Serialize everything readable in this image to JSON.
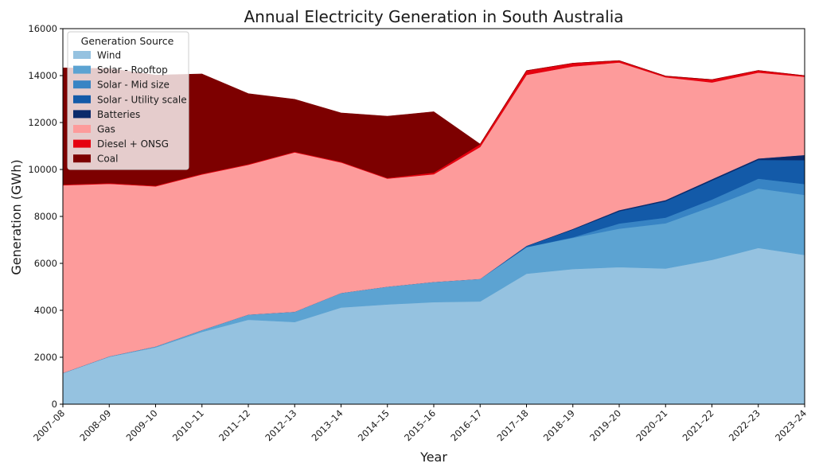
{
  "chart_data": {
    "type": "area",
    "stacked": true,
    "title": "Annual Electricity Generation in South Australia",
    "xlabel": "Year",
    "ylabel": "Generation (GWh)",
    "ylim": [
      0,
      16000
    ],
    "yticks": [
      0,
      2000,
      4000,
      6000,
      8000,
      10000,
      12000,
      14000,
      16000
    ],
    "grid": false,
    "legend": {
      "title": "Generation Source",
      "position": "top-left"
    },
    "categories": [
      "2007–08",
      "2008–09",
      "2009–10",
      "2010–11",
      "2011–12",
      "2012–13",
      "2013–14",
      "2014–15",
      "2015–16",
      "2016–17",
      "2017–18",
      "2018–19",
      "2019–20",
      "2020–21",
      "2021–22",
      "2022–23",
      "2023–24"
    ],
    "series": [
      {
        "name": "Wind",
        "color": "#95c2e0",
        "values": [
          1320,
          2020,
          2420,
          3080,
          3600,
          3500,
          4120,
          4250,
          4350,
          4380,
          5560,
          5760,
          5840,
          5780,
          6150,
          6660,
          6360
        ]
      },
      {
        "name": "Solar - Rooftop",
        "color": "#5ca3d2",
        "values": [
          10,
          20,
          40,
          80,
          220,
          440,
          620,
          760,
          860,
          960,
          1130,
          1330,
          1640,
          1930,
          2270,
          2530,
          2560
        ]
      },
      {
        "name": "Solar - Mid size",
        "color": "#3884c4",
        "values": [
          0,
          0,
          0,
          0,
          0,
          0,
          0,
          0,
          0,
          0,
          0,
          20,
          220,
          240,
          300,
          420,
          460
        ]
      },
      {
        "name": "Solar - Utility scale",
        "color": "#135aa8",
        "values": [
          0,
          0,
          0,
          0,
          0,
          0,
          0,
          0,
          0,
          0,
          50,
          330,
          520,
          700,
          810,
          800,
          1020
        ]
      },
      {
        "name": "Batteries",
        "color": "#0b2a6b",
        "values": [
          0,
          0,
          0,
          0,
          0,
          0,
          0,
          0,
          0,
          0,
          10,
          30,
          50,
          50,
          60,
          60,
          220
        ]
      },
      {
        "name": "Gas",
        "color": "#fd9b9b",
        "values": [
          8000,
          7350,
          6820,
          6630,
          6380,
          6790,
          5560,
          4600,
          4590,
          5620,
          7280,
          6920,
          6290,
          5230,
          4120,
          3660,
          3330
        ]
      },
      {
        "name": "Diesel + ONSG",
        "color": "#e5000f",
        "values": [
          30,
          30,
          30,
          30,
          30,
          30,
          30,
          30,
          70,
          120,
          180,
          140,
          80,
          50,
          120,
          90,
          50
        ]
      },
      {
        "name": "Coal",
        "color": "#7d0000",
        "values": [
          4970,
          4880,
          4710,
          4250,
          3000,
          2230,
          2080,
          2630,
          2590,
          0,
          0,
          0,
          0,
          0,
          0,
          0,
          0
        ]
      }
    ]
  }
}
